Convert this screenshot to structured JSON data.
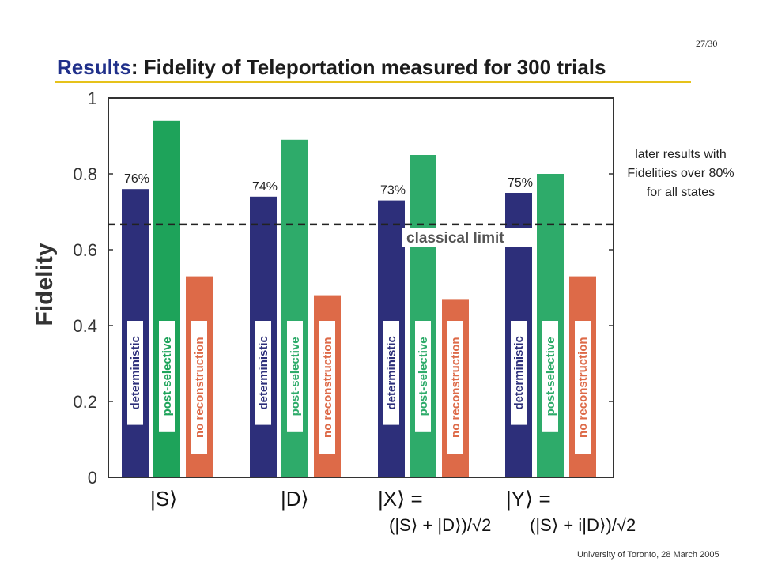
{
  "slide": {
    "page_number": "27/30",
    "title_accent": "Results",
    "title_rest": ": Fidelity of Teleportation measured for 300 trials",
    "side_note": "later results with Fidelities over 80% for all states",
    "footer": "University of Toronto, 28 March 2005"
  },
  "colors": {
    "deterministic": "#2d2f7a",
    "post_selective": "#1ea35a",
    "post_selective_alt": "#2eab6a",
    "no_reconstruction": "#dd6a48"
  },
  "chart_data": {
    "type": "bar",
    "ylabel": "Fidelity",
    "ylim": [
      0,
      1
    ],
    "yticks": [
      "0",
      "0.2",
      "0.4",
      "0.6",
      "0.8",
      "1"
    ],
    "categories": [
      "|S⟩",
      "|D⟩",
      "|X⟩ = (|S⟩ + |D⟩)/√2",
      "|Y⟩ = (|S⟩ + i|D⟩)/√2"
    ],
    "series": [
      {
        "name": "deterministic",
        "values": [
          0.76,
          0.74,
          0.73,
          0.75
        ]
      },
      {
        "name": "post-selective",
        "values": [
          0.94,
          0.89,
          0.85,
          0.8
        ]
      },
      {
        "name": "no reconstruction",
        "values": [
          0.53,
          0.48,
          0.47,
          0.53
        ]
      }
    ],
    "data_labels": [
      "76%",
      "74%",
      "73%",
      "75%"
    ],
    "reference_line": {
      "value": 0.667,
      "label": "classical limit",
      "style": "dashed"
    }
  }
}
